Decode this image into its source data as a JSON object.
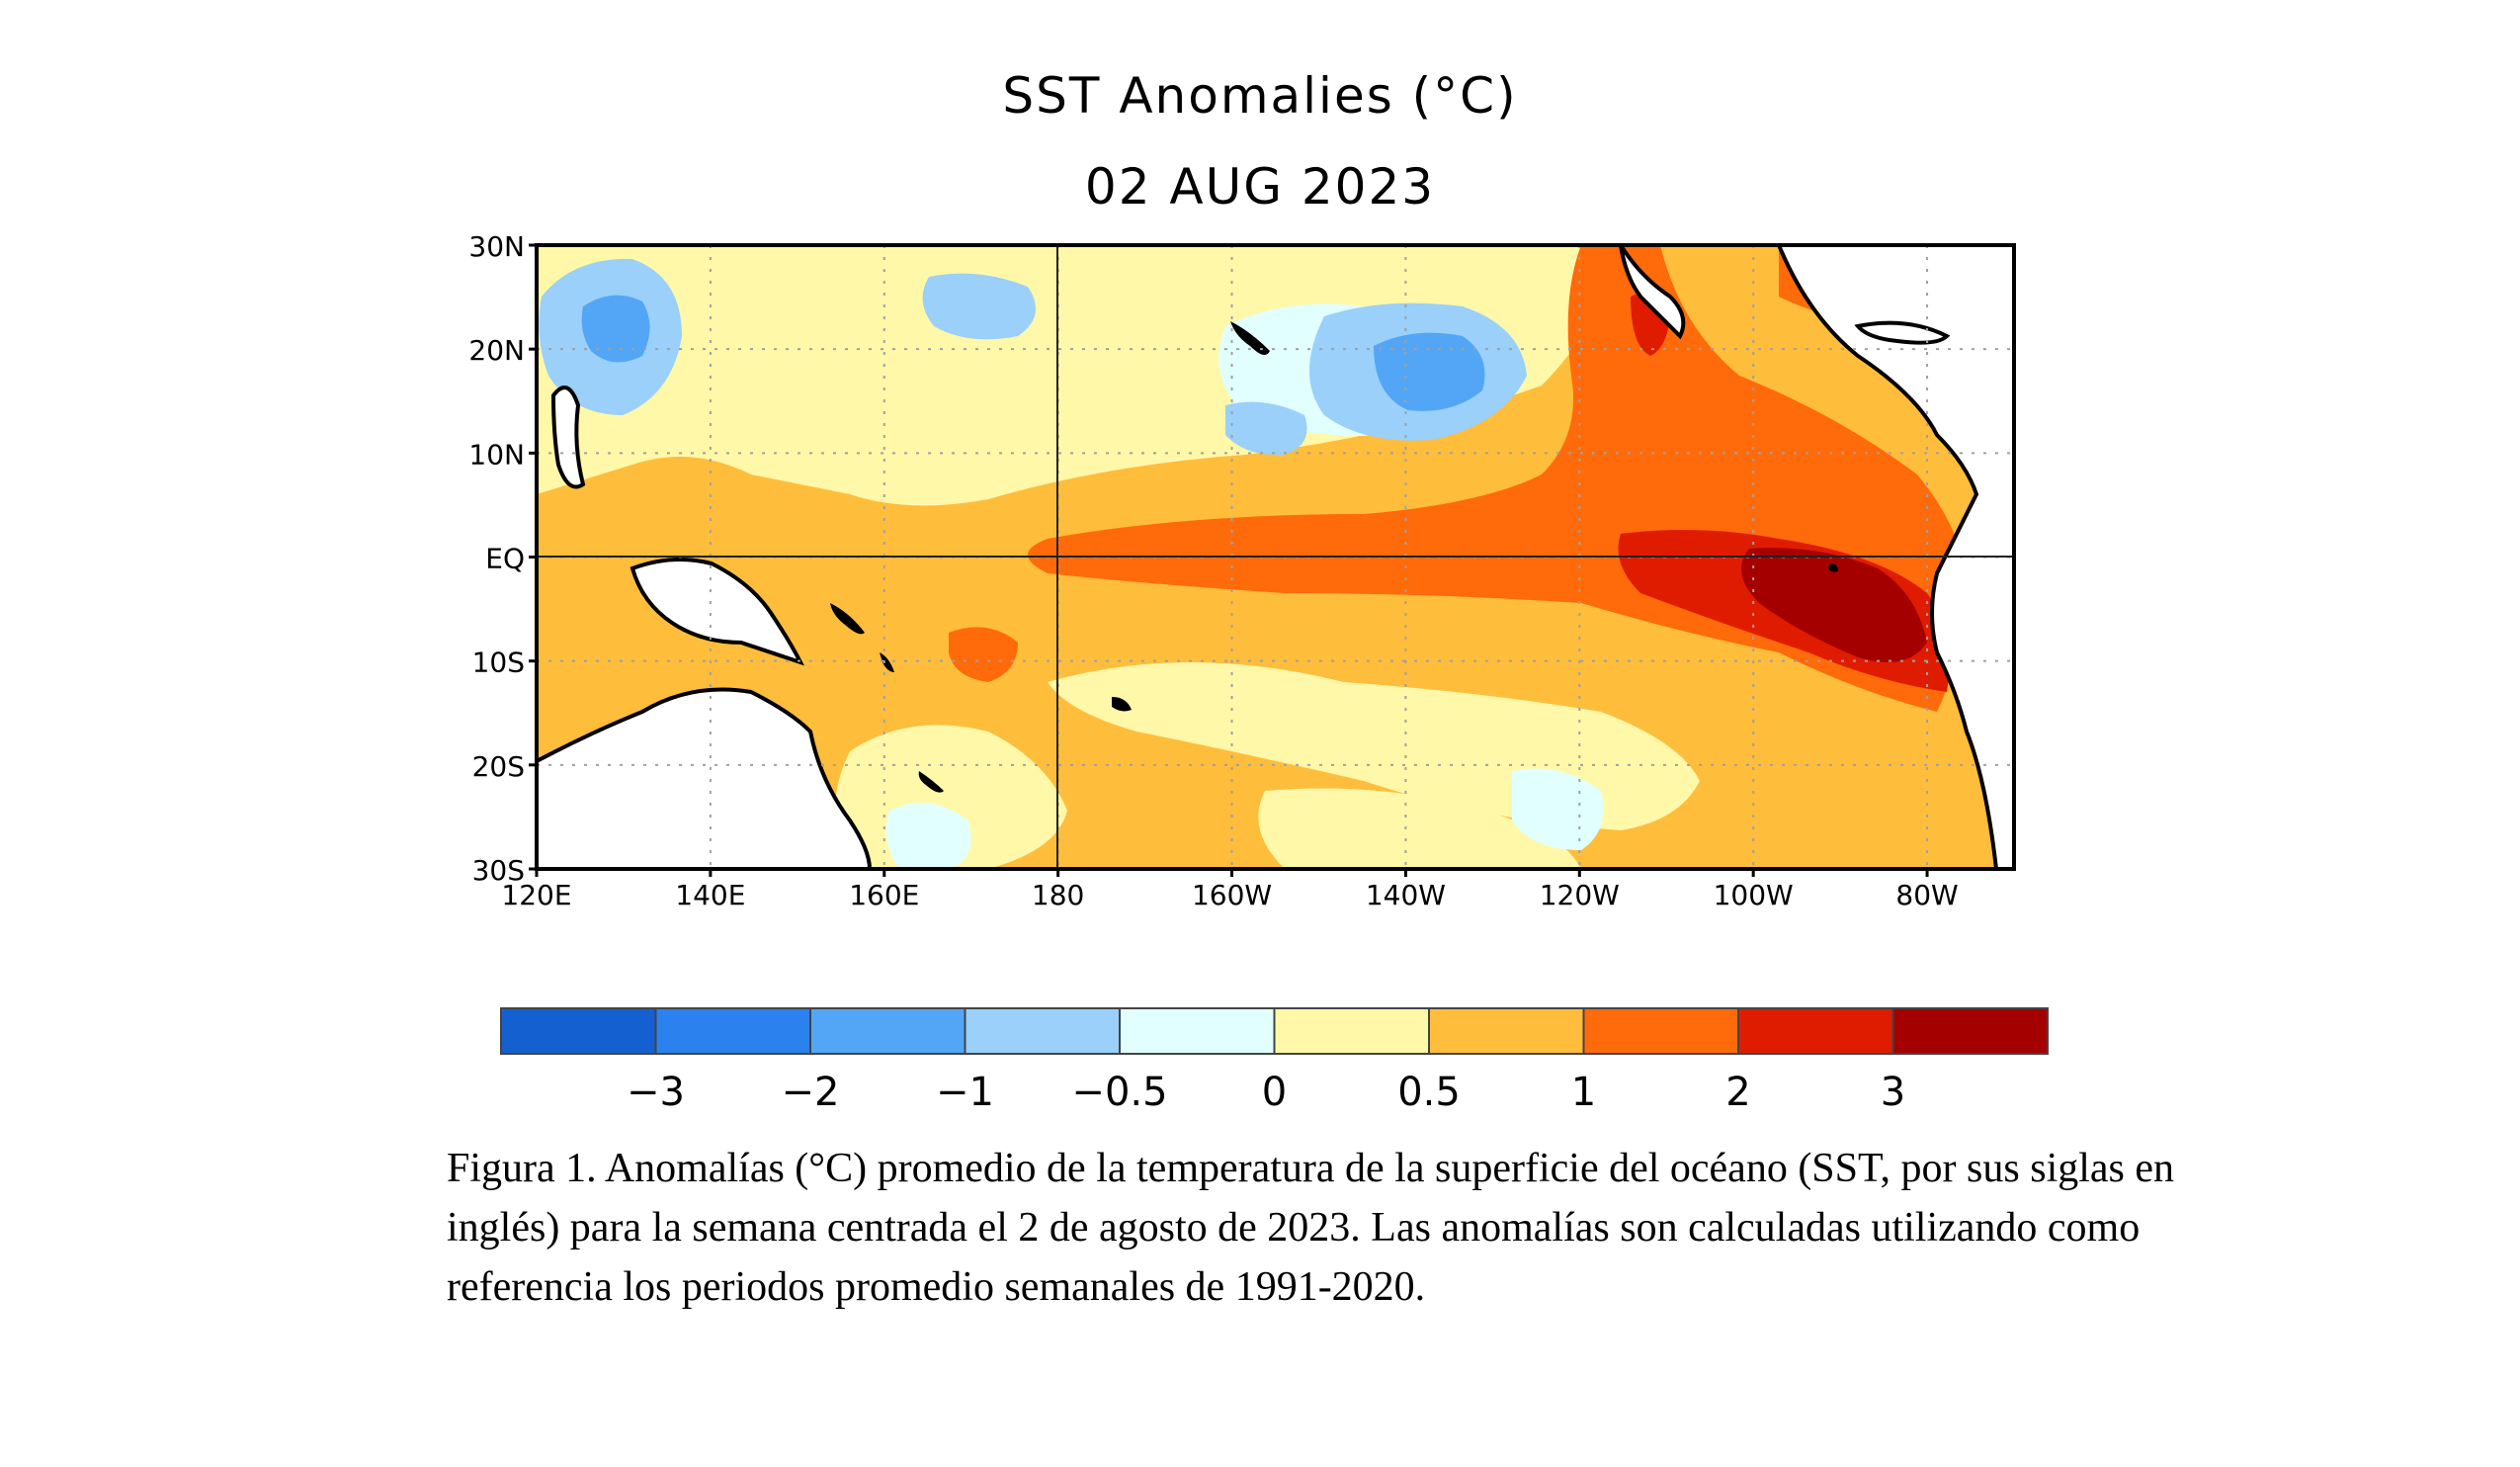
{
  "figure": {
    "title": "SST Anomalies (°C)",
    "date": "02 AUG 2023"
  },
  "map": {
    "lat_labels": [
      "30N",
      "20N",
      "10N",
      "EQ",
      "10S",
      "20S",
      "30S"
    ],
    "lon_labels": [
      "120E",
      "140E",
      "160E",
      "180",
      "160W",
      "140W",
      "120W",
      "100W",
      "80W"
    ],
    "lat_range": [
      -30,
      30
    ],
    "lon_range": [
      120,
      290
    ],
    "grid": "dotted"
  },
  "legend": {
    "colors": [
      "#1560d0",
      "#2b82ee",
      "#53a6f5",
      "#9ad0f9",
      "#e1ffff",
      "#fff8a8",
      "#ffbd3c",
      "#ff6a0b",
      "#e01c00",
      "#a50000"
    ],
    "labels": [
      "−3",
      "−2",
      "−1",
      "−0.5",
      "0",
      "0.5",
      "1",
      "2",
      "3"
    ]
  },
  "caption": "Figura 1. Anomalías (°C) promedio de la temperatura de la superficie del océano (SST, por sus siglas en inglés) para la semana centrada el 2 de agosto de 2023. Las anomalías son calculadas utilizando como referencia los periodos promedio semanales de 1991-2020."
}
